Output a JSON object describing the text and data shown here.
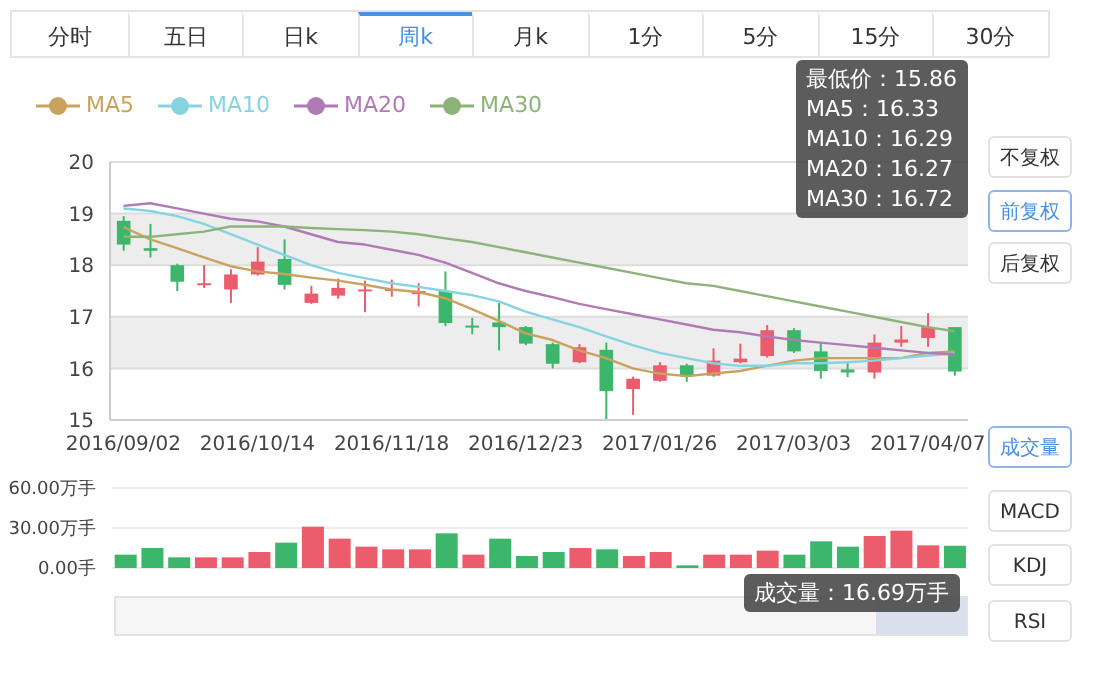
{
  "chart_data": [
    {
      "type": "candlestick",
      "legend": "top left",
      "grid": "y",
      "annotations": [
        "最低价：15.86",
        "MA5：16.33",
        "MA10：16.29",
        "MA20：16.27",
        "MA30：16.72"
      ],
      "categories": [
        "2016/09/02",
        null,
        null,
        null,
        null,
        "2016/10/14",
        null,
        null,
        null,
        null,
        "2016/11/18",
        null,
        null,
        null,
        null,
        "2016/12/23",
        null,
        null,
        null,
        null,
        "2017/01/26",
        null,
        null,
        null,
        null,
        "2017/03/03",
        null,
        null,
        null,
        null,
        "2017/04/07",
        null
      ],
      "ylim": [
        15,
        20
      ],
      "yticks": [
        15,
        16,
        17,
        18,
        19,
        20
      ],
      "ohlc": [
        [
          18.86,
          18.95,
          18.28,
          18.4
        ],
        [
          18.33,
          18.8,
          18.15,
          18.28
        ],
        [
          18.0,
          18.03,
          17.5,
          17.68
        ],
        [
          17.62,
          18.0,
          17.56,
          17.65
        ],
        [
          17.53,
          17.92,
          17.27,
          17.82
        ],
        [
          17.82,
          18.35,
          17.8,
          18.07
        ],
        [
          18.12,
          18.5,
          17.53,
          17.62
        ],
        [
          17.27,
          17.6,
          17.25,
          17.45
        ],
        [
          17.41,
          17.74,
          17.35,
          17.56
        ],
        [
          17.5,
          17.7,
          17.09,
          17.53
        ],
        [
          17.5,
          17.72,
          17.39,
          17.54
        ],
        [
          17.44,
          17.65,
          17.2,
          17.5
        ],
        [
          17.5,
          17.88,
          16.82,
          16.88
        ],
        [
          16.83,
          16.98,
          16.66,
          16.81
        ],
        [
          16.89,
          17.27,
          16.35,
          16.8
        ],
        [
          16.8,
          16.82,
          16.45,
          16.48
        ],
        [
          16.47,
          16.5,
          16.0,
          16.09
        ],
        [
          16.12,
          16.47,
          16.1,
          16.41
        ],
        [
          16.36,
          16.5,
          15.0,
          15.56
        ],
        [
          15.6,
          15.84,
          15.1,
          15.8
        ],
        [
          15.76,
          16.12,
          15.74,
          16.06
        ],
        [
          16.06,
          16.09,
          15.74,
          15.84
        ],
        [
          15.86,
          16.39,
          15.84,
          16.15
        ],
        [
          16.12,
          16.48,
          16.1,
          16.19
        ],
        [
          16.24,
          16.84,
          16.21,
          16.74
        ],
        [
          16.74,
          16.78,
          16.3,
          16.33
        ],
        [
          16.33,
          16.5,
          15.8,
          15.95
        ],
        [
          15.98,
          16.1,
          15.83,
          15.92
        ],
        [
          15.92,
          16.66,
          15.8,
          16.5
        ],
        [
          16.5,
          16.82,
          16.42,
          16.56
        ],
        [
          16.59,
          17.07,
          16.42,
          16.8
        ],
        [
          16.8,
          16.8,
          15.86,
          15.94
        ]
      ],
      "colors": [
        "#3cb66a",
        "#3cb66a",
        "#3cb66a",
        "#eb5c6c",
        "#eb5c6c",
        "#eb5c6c",
        "#3cb66a",
        "#eb5c6c",
        "#eb5c6c",
        "#eb5c6c",
        "#eb5c6c",
        "#eb5c6c",
        "#3cb66a",
        "#3cb66a",
        "#3cb66a",
        "#3cb66a",
        "#3cb66a",
        "#eb5c6c",
        "#3cb66a",
        "#eb5c6c",
        "#eb5c6c",
        "#3cb66a",
        "#eb5c6c",
        "#eb5c6c",
        "#eb5c6c",
        "#3cb66a",
        "#3cb66a",
        "#3cb66a",
        "#eb5c6c",
        "#eb5c6c",
        "#eb5c6c",
        "#3cb66a"
      ],
      "series": [
        {
          "type": "line",
          "name": "MA5",
          "color": "#c9a25e",
          "values": [
            18.74,
            18.5,
            18.33,
            18.15,
            17.98,
            17.88,
            17.83,
            17.76,
            17.7,
            17.62,
            17.53,
            17.48,
            17.36,
            17.15,
            16.92,
            16.68,
            16.55,
            16.35,
            16.2,
            16.0,
            15.9,
            15.85,
            15.9,
            15.95,
            16.05,
            16.15,
            16.2,
            16.2,
            16.2,
            16.2,
            16.3,
            16.33
          ]
        },
        {
          "type": "line",
          "name": "MA10",
          "color": "#86d3e2",
          "values": [
            19.1,
            19.05,
            18.95,
            18.8,
            18.6,
            18.4,
            18.2,
            18.0,
            17.85,
            17.75,
            17.65,
            17.58,
            17.5,
            17.42,
            17.3,
            17.1,
            16.95,
            16.8,
            16.62,
            16.45,
            16.3,
            16.2,
            16.1,
            16.05,
            16.05,
            16.1,
            16.1,
            16.12,
            16.15,
            16.2,
            16.25,
            16.29
          ]
        },
        {
          "type": "line",
          "name": "MA20",
          "color": "#b07ab4",
          "values": [
            19.15,
            19.2,
            19.1,
            19.0,
            18.9,
            18.85,
            18.75,
            18.6,
            18.45,
            18.4,
            18.3,
            18.2,
            18.05,
            17.85,
            17.65,
            17.5,
            17.38,
            17.25,
            17.15,
            17.05,
            16.95,
            16.85,
            16.75,
            16.7,
            16.62,
            16.55,
            16.5,
            16.45,
            16.4,
            16.35,
            16.3,
            16.27
          ]
        },
        {
          "type": "line",
          "name": "MA30",
          "color": "#8db27a",
          "values": [
            18.55,
            18.55,
            18.6,
            18.65,
            18.75,
            18.75,
            18.75,
            18.72,
            18.7,
            18.68,
            18.65,
            18.6,
            18.52,
            18.45,
            18.35,
            18.25,
            18.15,
            18.05,
            17.95,
            17.85,
            17.75,
            17.65,
            17.6,
            17.5,
            17.4,
            17.3,
            17.2,
            17.1,
            17.0,
            16.9,
            16.8,
            16.72
          ]
        }
      ]
    },
    {
      "type": "bar",
      "grid": "y",
      "tick_labels": "y",
      "annotations": [
        "成交量：16.69万手"
      ],
      "categories": [
        null,
        null,
        null,
        null,
        null,
        null,
        null,
        null,
        null,
        null,
        null,
        null,
        null,
        null,
        null,
        null,
        null,
        null,
        null,
        null,
        null,
        null,
        null,
        null,
        null,
        null,
        null,
        null,
        null,
        null,
        null,
        null
      ],
      "ylim": [
        0,
        60
      ],
      "yticks": [
        {
          "value": 0,
          "label": "0.00手"
        },
        {
          "value": 30,
          "label": "30.00万手"
        },
        {
          "value": 60,
          "label": "60.00万手"
        }
      ],
      "values": [
        10,
        15,
        8,
        8,
        8,
        12,
        19,
        31,
        22,
        16,
        14,
        14,
        26,
        10,
        22,
        9,
        12,
        15,
        14,
        9,
        12,
        2,
        10,
        10,
        13,
        10,
        20,
        16,
        24,
        28,
        17,
        16.69
      ],
      "colors": [
        "#3cb66a",
        "#3cb66a",
        "#3cb66a",
        "#eb5c6c",
        "#eb5c6c",
        "#eb5c6c",
        "#3cb66a",
        "#eb5c6c",
        "#eb5c6c",
        "#eb5c6c",
        "#eb5c6c",
        "#eb5c6c",
        "#3cb66a",
        "#eb5c6c",
        "#3cb66a",
        "#3cb66a",
        "#3cb66a",
        "#eb5c6c",
        "#3cb66a",
        "#eb5c6c",
        "#eb5c6c",
        "#3cb66a",
        "#eb5c6c",
        "#eb5c6c",
        "#eb5c6c",
        "#3cb66a",
        "#3cb66a",
        "#3cb66a",
        "#eb5c6c",
        "#eb5c6c",
        "#eb5c6c",
        "#3cb66a"
      ]
    },
    {
      "type": "other",
      "annotations": [
        "分时",
        "五日",
        "日k",
        "周k",
        "月k",
        "1分",
        "5分",
        "15分",
        "30分",
        "不复权",
        "前复权",
        "后复权",
        "成交量",
        "MACD",
        "KDJ",
        "RSI"
      ]
    }
  ]
}
